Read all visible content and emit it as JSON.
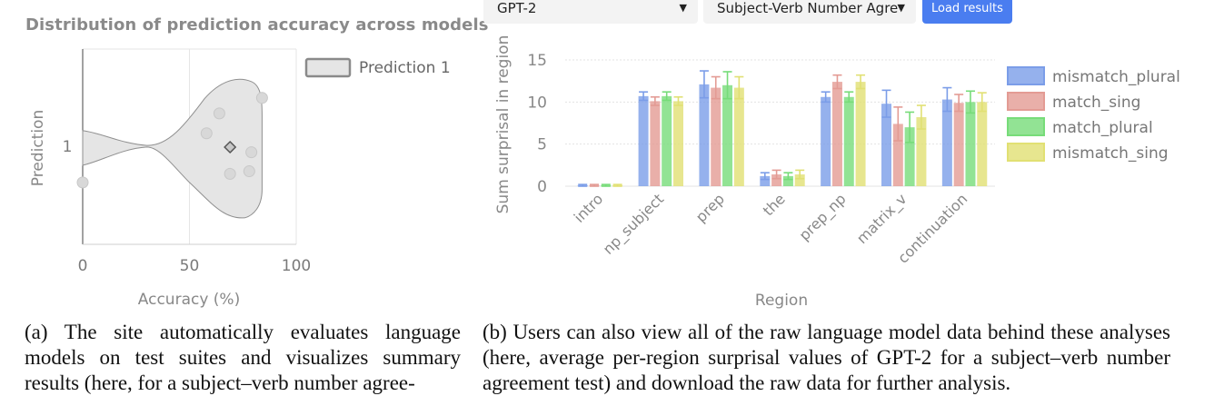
{
  "left_panel": {
    "title": "Distribution of prediction accuracy across models",
    "legend_label": "Prediction 1"
  },
  "right_panel": {
    "model_select": {
      "value": "GPT-2"
    },
    "suite_select": {
      "value": "Subject-Verb Number Agreement"
    },
    "load_button": {
      "label": "Load results"
    }
  },
  "captions": {
    "a": "(a) The site automatically evaluates language models on test suites and visualizes summary results (here, for a subject–verb number agree-",
    "b": "(b) Users can also view all of the raw language model data behind these analyses (here, average per-region surprisal values of GPT-2 for a subject–verb number agreement test) and download the raw data for further analysis."
  },
  "colors": {
    "mismatch_plural": "#7b9de8",
    "match_sing": "#e39b94",
    "match_plural": "#77dc79",
    "mismatch_sing": "#e1e073",
    "violin_fill": "#e5e5e5"
  },
  "chart_data": [
    {
      "type": "violin",
      "title": "Distribution of prediction accuracy across models",
      "xlabel": "Accuracy (%)",
      "ylabel": "Prediction",
      "xlim": [
        0,
        100
      ],
      "xticks": [
        0,
        50,
        100
      ],
      "categories": [
        "1"
      ],
      "legend": [
        "Prediction 1"
      ],
      "points": [
        {
          "accuracy": 84,
          "offset": 0.56
        },
        {
          "accuracy": 64,
          "offset": 0.38
        },
        {
          "accuracy": 58,
          "offset": 0.15
        },
        {
          "accuracy": 79,
          "offset": -0.07
        },
        {
          "accuracy": 78,
          "offset": -0.29
        },
        {
          "accuracy": 69,
          "offset": -0.32
        },
        {
          "accuracy": 0,
          "offset": -0.42
        }
      ],
      "mean": 69,
      "grid": true
    },
    {
      "type": "bar",
      "xlabel": "Region",
      "ylabel": "Sum surprisal in region",
      "ylim": [
        0,
        15
      ],
      "yticks": [
        0,
        5,
        10,
        15
      ],
      "categories": [
        "intro",
        "np_subject",
        "prep",
        "the",
        "prep_np",
        "matrix_v",
        "continuation"
      ],
      "series": [
        {
          "name": "mismatch_plural",
          "values": [
            0.1,
            10.7,
            12.1,
            1.2,
            10.6,
            9.8,
            10.3
          ],
          "errors": [
            0.1,
            0.5,
            1.6,
            0.4,
            0.6,
            1.6,
            1.4
          ]
        },
        {
          "name": "match_sing",
          "values": [
            0.1,
            10.1,
            11.7,
            1.4,
            12.4,
            7.4,
            9.9
          ],
          "errors": [
            0.1,
            0.5,
            1.3,
            0.5,
            0.8,
            2.0,
            1.0
          ]
        },
        {
          "name": "match_plural",
          "values": [
            0.1,
            10.7,
            12.0,
            1.2,
            10.6,
            7.0,
            10.0
          ],
          "errors": [
            0.1,
            0.5,
            1.6,
            0.4,
            0.6,
            1.8,
            1.3
          ]
        },
        {
          "name": "mismatch_sing",
          "values": [
            0.1,
            10.1,
            11.7,
            1.4,
            12.4,
            8.2,
            10.0
          ],
          "errors": [
            0.1,
            0.5,
            1.3,
            0.5,
            0.8,
            1.4,
            1.1
          ]
        }
      ],
      "legend_position": "right",
      "grid": true
    }
  ]
}
